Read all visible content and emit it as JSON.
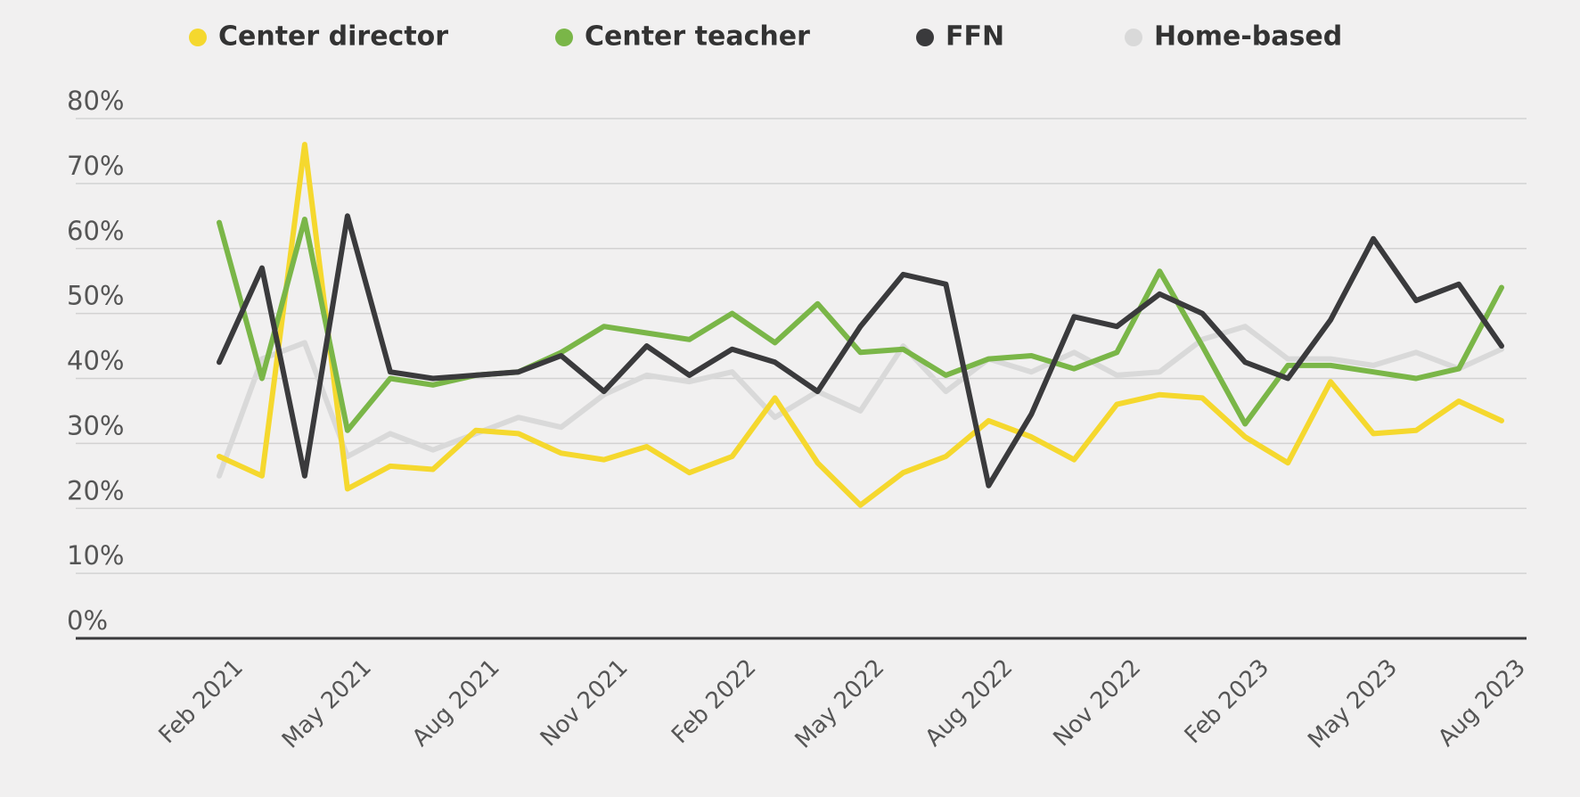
{
  "chart_data": {
    "type": "line",
    "categories": [
      "Feb 2021",
      null,
      null,
      "May 2021",
      null,
      null,
      "Aug 2021",
      null,
      null,
      "Nov 2021",
      null,
      null,
      "Feb 2022",
      null,
      null,
      "May 2022",
      null,
      null,
      "Aug 2022",
      null,
      null,
      "Nov 2022",
      null,
      null,
      "Feb 2023",
      null,
      null,
      "May 2023",
      null,
      null,
      "Aug 2023"
    ],
    "series": [
      {
        "name": "Center director",
        "color": "#f5d82e",
        "values": [
          28,
          25,
          76,
          23,
          26.5,
          26,
          32,
          31.5,
          28.5,
          27.5,
          29.5,
          25.5,
          28,
          37,
          27,
          20.5,
          25.5,
          28,
          33.5,
          31,
          27.5,
          36,
          37.5,
          37,
          31,
          27,
          39.5,
          31.5,
          32,
          36.5,
          33.5
        ]
      },
      {
        "name": "Center teacher",
        "color": "#7ab648",
        "values": [
          64,
          40,
          64.5,
          32,
          40,
          39,
          40.5,
          41,
          44,
          48,
          47,
          46,
          50,
          45.5,
          51.5,
          44,
          44.5,
          40.5,
          43,
          43.5,
          41.5,
          44,
          56.5,
          45,
          33,
          42,
          42,
          41,
          40,
          41.5,
          54
        ]
      },
      {
        "name": "FFN",
        "color": "#3a3a3c",
        "values": [
          42.5,
          57,
          25,
          65,
          41,
          40,
          40.5,
          41,
          43.5,
          38,
          45,
          40.5,
          44.5,
          42.5,
          38,
          48,
          56,
          54.5,
          23.5,
          34.5,
          49.5,
          48,
          53,
          50,
          42.5,
          40,
          49,
          61.5,
          52,
          54.5,
          45
        ]
      },
      {
        "name": "Home-based",
        "color": "#d9d9d9",
        "values": [
          25,
          43,
          45.5,
          28,
          31.5,
          29,
          31.5,
          34,
          32.5,
          37.5,
          40.5,
          39.5,
          41,
          34,
          38,
          35,
          45,
          38,
          43,
          41,
          44,
          40.5,
          41,
          46,
          48,
          43,
          43,
          42,
          44,
          41.5,
          44.5
        ]
      }
    ],
    "ylim": [
      0,
      80
    ],
    "yticks": [
      {
        "value": 0,
        "label": "0%"
      },
      {
        "value": 10,
        "label": "10%"
      },
      {
        "value": 20,
        "label": "20%"
      },
      {
        "value": 30,
        "label": "30%"
      },
      {
        "value": 40,
        "label": "40%"
      },
      {
        "value": 50,
        "label": "50%"
      },
      {
        "value": 60,
        "label": "60%"
      },
      {
        "value": 70,
        "label": "70%"
      },
      {
        "value": 80,
        "label": "80%"
      }
    ],
    "grid": true,
    "legend": "top"
  }
}
